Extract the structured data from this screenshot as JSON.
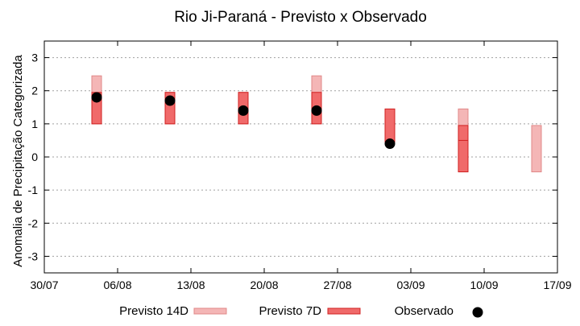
{
  "chart_data": {
    "type": "bar",
    "title": "Rio Ji-Paraná - Previsto x Observado",
    "ylabel": "Anomalia de Precipitação Categorizada",
    "xlabel": "",
    "ylim": [
      -3.5,
      3.5
    ],
    "yticks": [
      -3,
      -2,
      -1,
      0,
      1,
      2,
      3
    ],
    "xticks": [
      "30/07",
      "06/08",
      "13/08",
      "20/08",
      "27/08",
      "03/09",
      "10/09",
      "17/09"
    ],
    "grid": true,
    "legend_position": "bottom",
    "x_dates": [
      "06/08",
      "13/08",
      "20/08",
      "27/08",
      "03/09",
      "10/09",
      "17/09"
    ],
    "series": [
      {
        "name": "Previsto 14D",
        "kind": "range",
        "color": "#f4b6b6",
        "ranges": [
          [
            1,
            2.45
          ],
          [
            1,
            1.95
          ],
          [
            1,
            1.95
          ],
          [
            1,
            2.45
          ],
          null,
          [
            -0.45,
            1.45
          ],
          [
            -0.45,
            0.95
          ]
        ],
        "midlines": [
          1.45,
          1.45,
          null,
          1.45,
          null,
          0.5,
          null
        ]
      },
      {
        "name": "Previsto 7D",
        "kind": "range",
        "color": "#f06a6a",
        "ranges": [
          [
            1,
            1.95
          ],
          [
            1,
            1.95
          ],
          [
            1,
            1.95
          ],
          [
            1,
            1.95
          ],
          [
            0.45,
            1.45
          ],
          [
            -0.45,
            0.95
          ],
          null
        ],
        "midlines": [
          null,
          null,
          null,
          null,
          null,
          0.5,
          null
        ]
      },
      {
        "name": "Observado",
        "kind": "point",
        "color": "#000000",
        "values": [
          1.8,
          1.7,
          1.4,
          1.4,
          0.4,
          null,
          null
        ]
      }
    ]
  }
}
